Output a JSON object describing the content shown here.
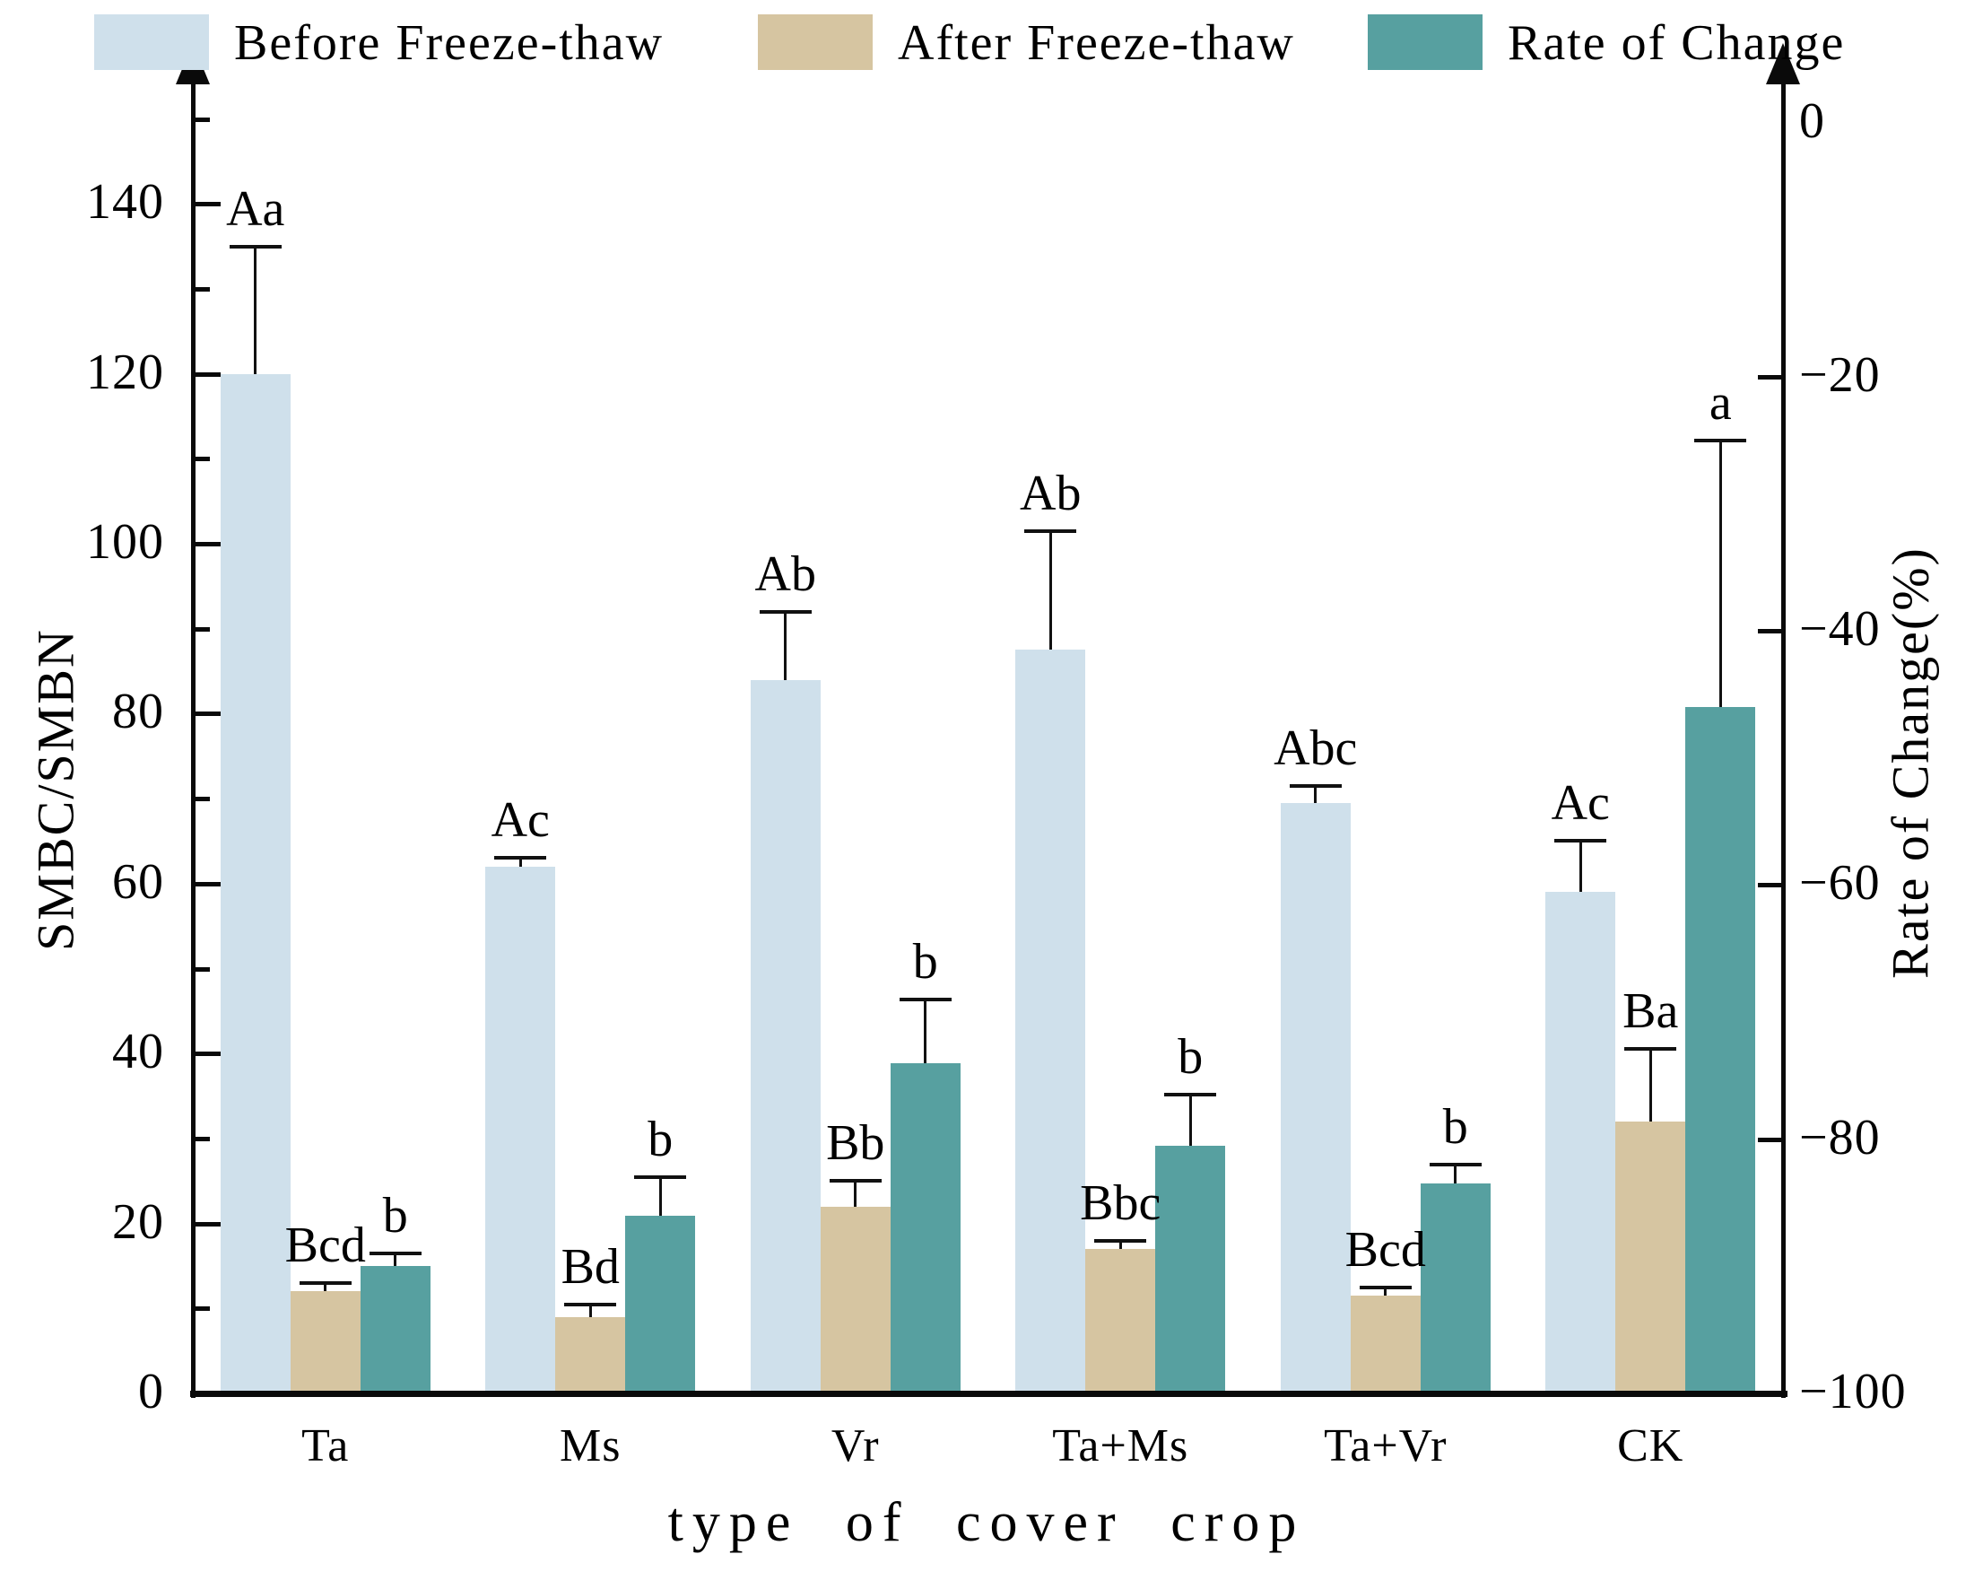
{
  "chart_data": {
    "type": "bar",
    "title": "",
    "categories": [
      "Ta",
      "Ms",
      "Vr",
      "Ta+Ms",
      "Ta+Vr",
      "CK"
    ],
    "xlabel": "type of cover crop",
    "left_axis": {
      "label": "SMBC/SMBN",
      "ticks": [
        0,
        20,
        40,
        60,
        80,
        100,
        120,
        140
      ],
      "minor_tick_step": 10,
      "range": [
        0,
        150
      ]
    },
    "right_axis": {
      "label": "Rate of Change(%)",
      "ticks": [
        0,
        -20,
        -40,
        -60,
        -80,
        -100
      ],
      "range": [
        0,
        -100
      ]
    },
    "legend_position": "top",
    "grid": false,
    "rate_bars_baseline": -100,
    "series": [
      {
        "name": "Before Freeze-thaw",
        "axis": "left",
        "color": "#cfe0eb",
        "values": [
          120,
          62,
          84,
          87.5,
          69.5,
          59
        ],
        "errors": [
          15,
          1,
          8,
          14,
          2,
          6
        ],
        "sig_labels": [
          "Aa",
          "Ac",
          "Ab",
          "Ab",
          "Abc",
          "Ac"
        ]
      },
      {
        "name": "After Freeze-thaw",
        "axis": "left",
        "color": "#d6c5a1",
        "values": [
          12,
          9,
          22,
          17,
          11.5,
          32
        ],
        "errors": [
          1,
          1.5,
          3,
          1,
          1,
          8.5
        ],
        "sig_labels": [
          "Bcd",
          "Bd",
          "Bb",
          "Bbc",
          "Bcd",
          "Ba"
        ]
      },
      {
        "name": "Rate of Change",
        "axis": "right",
        "color": "#57a0a0",
        "values": [
          -90,
          -86,
          -74,
          -80.5,
          -83.5,
          -46
        ],
        "errors": [
          1,
          3,
          5,
          4,
          1.5,
          21
        ],
        "sig_labels": [
          "b",
          "b",
          "b",
          "b",
          "b",
          "a"
        ]
      }
    ]
  }
}
